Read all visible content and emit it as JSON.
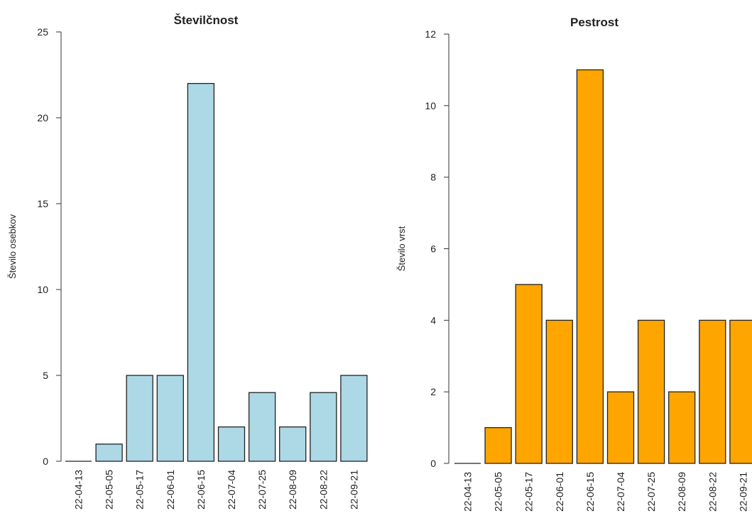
{
  "chart_data": [
    {
      "type": "bar",
      "title": "Številčnost",
      "xlabel": "",
      "ylabel": "Število osebkov",
      "categories": [
        "22-04-13",
        "22-05-05",
        "22-05-17",
        "22-06-01",
        "22-06-15",
        "22-07-04",
        "22-07-25",
        "22-08-09",
        "22-08-22",
        "22-09-21"
      ],
      "values": [
        0,
        1,
        5,
        5,
        22,
        2,
        4,
        2,
        4,
        5
      ],
      "ylim": [
        0,
        25
      ],
      "yticks": [
        0,
        5,
        10,
        15,
        20,
        25
      ],
      "bar_color": "#ADD8E6",
      "grid": false
    },
    {
      "type": "bar",
      "title": "Pestrost",
      "xlabel": "",
      "ylabel": "Število vrst",
      "categories": [
        "22-04-13",
        "22-05-05",
        "22-05-17",
        "22-06-01",
        "22-06-15",
        "22-07-04",
        "22-07-25",
        "22-08-09",
        "22-08-22",
        "22-09-21"
      ],
      "values": [
        0,
        1,
        5,
        4,
        11,
        2,
        4,
        2,
        4,
        4
      ],
      "ylim": [
        0,
        12
      ],
      "yticks": [
        0,
        2,
        4,
        6,
        8,
        10,
        12
      ],
      "bar_color": "#FFA500",
      "grid": false
    }
  ]
}
